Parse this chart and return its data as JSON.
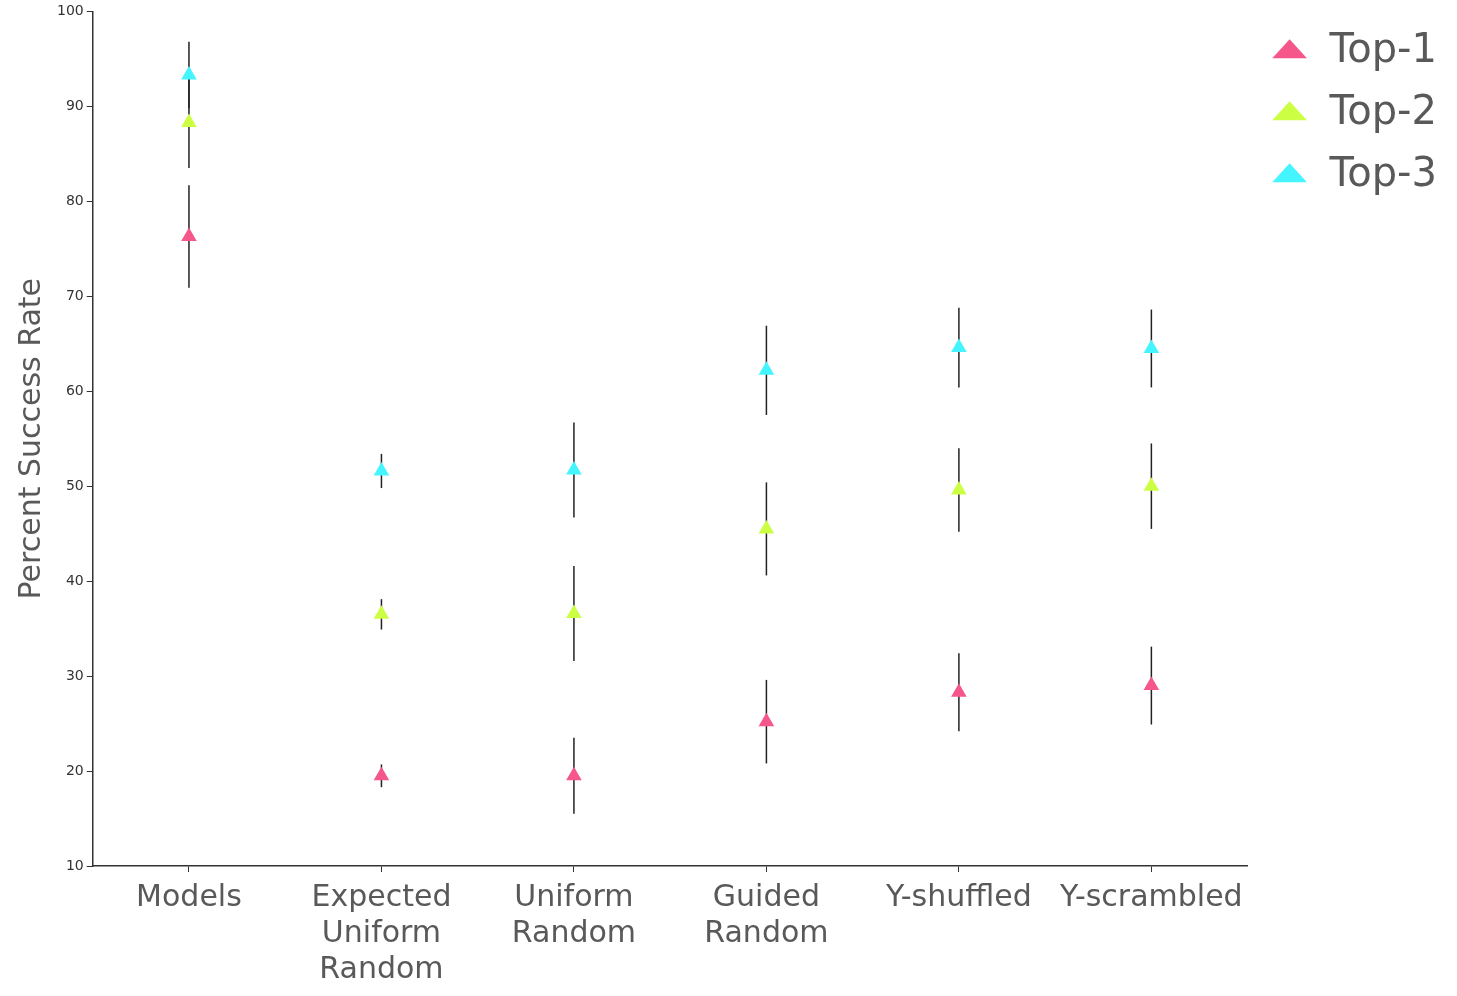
{
  "chart_data": {
    "type": "scatter",
    "ylabel": "Percent Success Rate",
    "categories": [
      "Models",
      "Expected Uniform Random",
      "Uniform Random",
      "Guided Random",
      "Y-shuffled",
      "Y-scrambled"
    ],
    "series": [
      {
        "name": "Top-1",
        "color": "#f5578a",
        "values": [
          76.3,
          19.5,
          19.5,
          25.2,
          28.3,
          29.0
        ],
        "errors": [
          5.4,
          1.2,
          4,
          4.4,
          4.1,
          4.1
        ]
      },
      {
        "name": "Top-2",
        "color": "#ccff44",
        "values": [
          88.3,
          36.5,
          36.6,
          45.5,
          49.6,
          50.0
        ],
        "errors": [
          4.8,
          1.6,
          5,
          4.9,
          4.4,
          4.5
        ]
      },
      {
        "name": "Top-3",
        "color": "#44f5ff",
        "values": [
          93.3,
          51.6,
          51.7,
          62.2,
          64.6,
          64.5
        ],
        "errors": [
          3.5,
          1.8,
          5,
          4.7,
          4.2,
          4.1
        ]
      }
    ],
    "ylim": [
      10,
      100
    ],
    "yticks": [
      10,
      20,
      30,
      40,
      50,
      60,
      70,
      80,
      90,
      100
    ],
    "grid": false,
    "legend": "top right",
    "marker": "triangle"
  }
}
